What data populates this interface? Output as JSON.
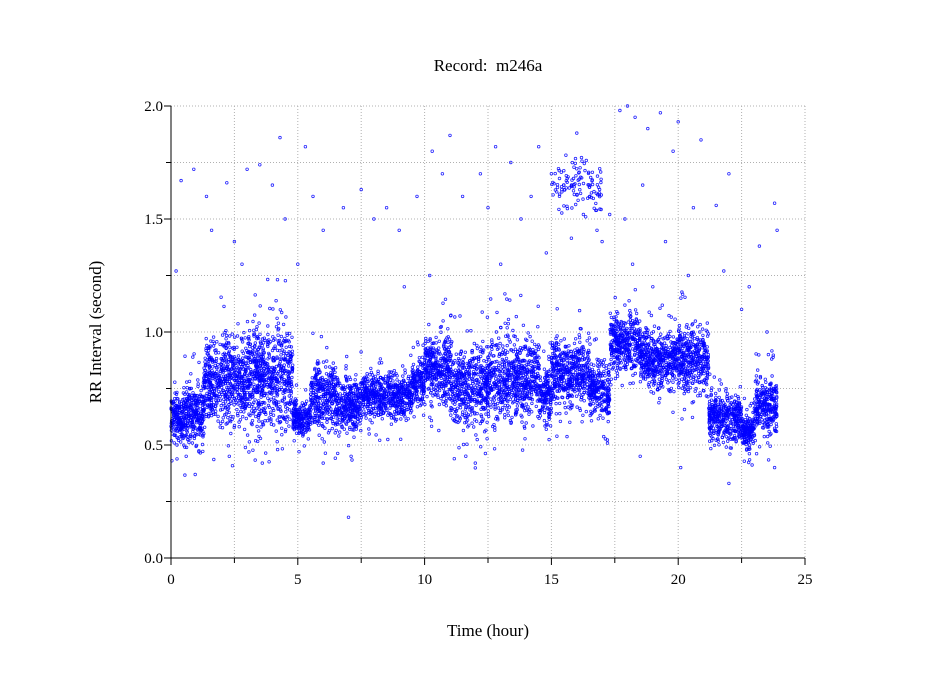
{
  "chart_data": {
    "type": "scatter",
    "title": "Record:  m246a",
    "xlabel": "Time (hour)",
    "ylabel": "RR Interval (second)",
    "xlim": [
      0,
      25
    ],
    "ylim": [
      0.0,
      2.0
    ],
    "xticks": [
      "0",
      "5",
      "10",
      "15",
      "20",
      "25"
    ],
    "yticks": [
      "0.0",
      "0.5",
      "1.0",
      "1.5",
      "2.0"
    ],
    "grid": true,
    "marker_color": "#0000ff",
    "band_segments": [
      {
        "start": 0.0,
        "end": 0.5,
        "center": 0.62,
        "spread": 0.08,
        "count": 160
      },
      {
        "start": 0.5,
        "end": 1.3,
        "center": 0.64,
        "spread": 0.11,
        "count": 260
      },
      {
        "start": 1.3,
        "end": 3.0,
        "center": 0.78,
        "spread": 0.15,
        "count": 560
      },
      {
        "start": 3.0,
        "end": 4.8,
        "center": 0.8,
        "spread": 0.18,
        "count": 620
      },
      {
        "start": 4.8,
        "end": 5.5,
        "center": 0.62,
        "spread": 0.06,
        "count": 200
      },
      {
        "start": 5.5,
        "end": 6.5,
        "center": 0.72,
        "spread": 0.12,
        "count": 300
      },
      {
        "start": 6.5,
        "end": 7.5,
        "center": 0.68,
        "spread": 0.1,
        "count": 300
      },
      {
        "start": 7.5,
        "end": 9.5,
        "center": 0.72,
        "spread": 0.08,
        "count": 560
      },
      {
        "start": 9.5,
        "end": 10.0,
        "center": 0.78,
        "spread": 0.08,
        "count": 150
      },
      {
        "start": 10.0,
        "end": 11.0,
        "center": 0.85,
        "spread": 0.12,
        "count": 320
      },
      {
        "start": 11.0,
        "end": 12.5,
        "center": 0.76,
        "spread": 0.15,
        "count": 460
      },
      {
        "start": 12.5,
        "end": 14.5,
        "center": 0.8,
        "spread": 0.15,
        "count": 600
      },
      {
        "start": 14.5,
        "end": 15.0,
        "center": 0.72,
        "spread": 0.1,
        "count": 150
      },
      {
        "start": 15.0,
        "end": 16.5,
        "center": 0.82,
        "spread": 0.12,
        "count": 450
      },
      {
        "start": 16.5,
        "end": 17.3,
        "center": 0.75,
        "spread": 0.1,
        "count": 240
      },
      {
        "start": 17.3,
        "end": 18.5,
        "center": 0.95,
        "spread": 0.1,
        "count": 360
      },
      {
        "start": 18.5,
        "end": 20.0,
        "center": 0.88,
        "spread": 0.1,
        "count": 450
      },
      {
        "start": 20.0,
        "end": 21.2,
        "center": 0.88,
        "spread": 0.12,
        "count": 360
      },
      {
        "start": 21.2,
        "end": 22.5,
        "center": 0.62,
        "spread": 0.08,
        "count": 380
      },
      {
        "start": 22.5,
        "end": 23.0,
        "center": 0.56,
        "spread": 0.06,
        "count": 150
      },
      {
        "start": 23.0,
        "end": 23.9,
        "center": 0.68,
        "spread": 0.1,
        "count": 270
      },
      {
        "start": 15.0,
        "end": 17.0,
        "center": 1.65,
        "spread": 0.1,
        "count": 110
      }
    ],
    "outliers": [
      [
        0.2,
        1.27
      ],
      [
        0.4,
        1.67
      ],
      [
        0.9,
        1.72
      ],
      [
        1.4,
        1.6
      ],
      [
        2.2,
        1.66
      ],
      [
        2.5,
        1.4
      ],
      [
        3.0,
        1.72
      ],
      [
        3.5,
        1.74
      ],
      [
        4.3,
        1.86
      ],
      [
        4.0,
        1.65
      ],
      [
        4.5,
        1.5
      ],
      [
        5.3,
        1.82
      ],
      [
        5.6,
        1.6
      ],
      [
        6.0,
        1.45
      ],
      [
        6.8,
        1.55
      ],
      [
        7.0,
        0.18
      ],
      [
        7.5,
        1.63
      ],
      [
        8.0,
        1.5
      ],
      [
        8.5,
        1.55
      ],
      [
        9.0,
        1.45
      ],
      [
        9.7,
        1.6
      ],
      [
        10.3,
        1.8
      ],
      [
        10.7,
        1.7
      ],
      [
        11.0,
        1.87
      ],
      [
        11.5,
        1.6
      ],
      [
        12.2,
        1.7
      ],
      [
        12.5,
        1.55
      ],
      [
        12.8,
        1.82
      ],
      [
        13.4,
        1.75
      ],
      [
        13.8,
        1.5
      ],
      [
        14.2,
        1.6
      ],
      [
        14.5,
        1.82
      ],
      [
        16.0,
        1.88
      ],
      [
        17.3,
        1.52
      ],
      [
        17.7,
        1.98
      ],
      [
        18.0,
        2.0
      ],
      [
        18.3,
        1.95
      ],
      [
        18.8,
        1.9
      ],
      [
        19.3,
        1.97
      ],
      [
        19.8,
        1.8
      ],
      [
        20.0,
        1.93
      ],
      [
        20.6,
        1.55
      ],
      [
        20.9,
        1.85
      ],
      [
        21.5,
        1.56
      ],
      [
        22.0,
        1.7
      ],
      [
        21.8,
        1.27
      ],
      [
        22.5,
        1.1
      ],
      [
        23.2,
        1.38
      ],
      [
        23.8,
        1.57
      ],
      [
        23.9,
        1.45
      ],
      [
        7.1,
        0.45
      ],
      [
        12.0,
        0.42
      ],
      [
        3.6,
        0.42
      ],
      [
        6.0,
        0.42
      ],
      [
        22.0,
        0.33
      ],
      [
        20.1,
        0.4
      ],
      [
        18.5,
        0.45
      ],
      [
        23.8,
        0.4
      ],
      [
        0.6,
        0.45
      ],
      [
        1.1,
        0.47
      ],
      [
        2.3,
        0.45
      ],
      [
        17.0,
        1.4
      ],
      [
        16.8,
        1.45
      ],
      [
        19.0,
        1.2
      ],
      [
        18.2,
        1.3
      ],
      [
        17.9,
        1.5
      ],
      [
        18.6,
        1.65
      ],
      [
        1.6,
        1.45
      ],
      [
        2.8,
        1.3
      ],
      [
        5.0,
        1.3
      ],
      [
        9.2,
        1.2
      ],
      [
        10.2,
        1.25
      ],
      [
        13.0,
        1.3
      ],
      [
        14.8,
        1.35
      ],
      [
        19.5,
        1.4
      ],
      [
        20.4,
        1.25
      ],
      [
        22.8,
        1.2
      ],
      [
        23.5,
        1.0
      ]
    ]
  }
}
